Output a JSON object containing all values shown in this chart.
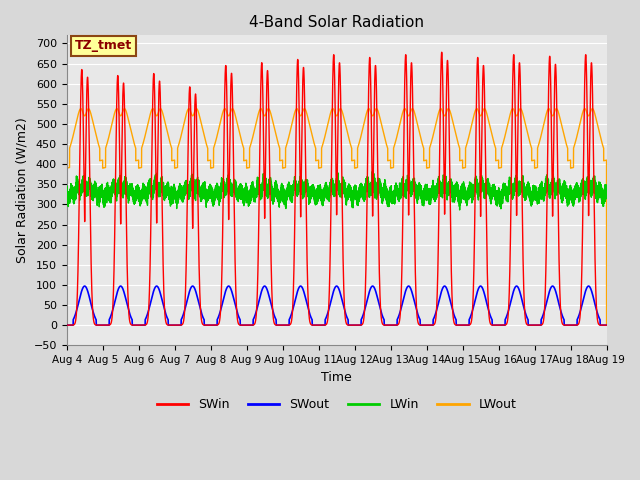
{
  "title": "4-Band Solar Radiation",
  "xlabel": "Time",
  "ylabel": "Solar Radiation (W/m2)",
  "ylim": [
    -50,
    720
  ],
  "annotation_text": "TZ_tmet",
  "annotation_color": "#8B0000",
  "annotation_bg": "#FFFF99",
  "annotation_border": "#8B4513",
  "colors": {
    "SWin": "#FF0000",
    "SWout": "#0000FF",
    "LWin": "#00CC00",
    "LWout": "#FFA500"
  },
  "n_days": 15,
  "day_start": 4,
  "background_color": "#D8D8D8",
  "plot_bg": "#E8E8E8",
  "grid_color": "#FFFFFF",
  "swin_peaks": [
    635,
    620,
    625,
    592,
    645,
    652,
    660,
    672,
    665,
    672,
    678,
    665,
    672,
    668,
    672
  ],
  "swout_peak": 97,
  "lwin_base": 320,
  "lwout_base": 400
}
